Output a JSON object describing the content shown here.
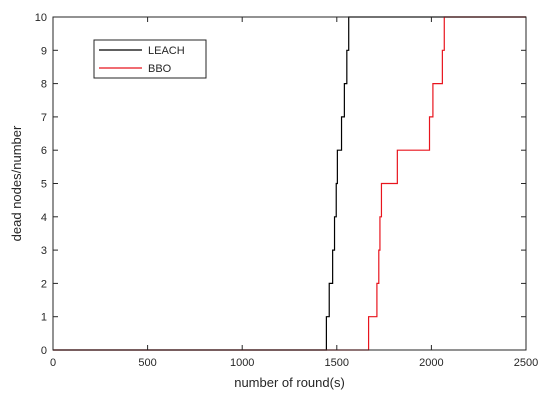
{
  "chart_data": {
    "type": "line",
    "title": "",
    "xlabel": "number of round(s)",
    "ylabel": "dead nodes/number",
    "xlim": [
      0,
      2500
    ],
    "ylim": [
      0,
      10
    ],
    "x_ticks": [
      0,
      500,
      1000,
      1500,
      2000,
      2500
    ],
    "y_ticks": [
      0,
      1,
      2,
      3,
      4,
      5,
      6,
      7,
      8,
      9,
      10
    ],
    "grid": false,
    "legend_position": "top-left",
    "step": true,
    "series": [
      {
        "name": "LEACH",
        "color": "#000000",
        "points": [
          [
            0,
            0
          ],
          [
            1445,
            0
          ],
          [
            1445,
            1
          ],
          [
            1460,
            1
          ],
          [
            1460,
            2
          ],
          [
            1478,
            2
          ],
          [
            1478,
            3
          ],
          [
            1488,
            3
          ],
          [
            1488,
            4
          ],
          [
            1497,
            4
          ],
          [
            1497,
            5
          ],
          [
            1503,
            5
          ],
          [
            1503,
            6
          ],
          [
            1525,
            6
          ],
          [
            1525,
            7
          ],
          [
            1540,
            7
          ],
          [
            1540,
            8
          ],
          [
            1553,
            8
          ],
          [
            1553,
            9
          ],
          [
            1563,
            9
          ],
          [
            1563,
            10
          ],
          [
            2500,
            10
          ]
        ]
      },
      {
        "name": "BBO",
        "color": "#e8141d",
        "points": [
          [
            0,
            0
          ],
          [
            1668,
            0
          ],
          [
            1668,
            1
          ],
          [
            1712,
            1
          ],
          [
            1712,
            2
          ],
          [
            1722,
            2
          ],
          [
            1722,
            3
          ],
          [
            1728,
            3
          ],
          [
            1728,
            4
          ],
          [
            1736,
            4
          ],
          [
            1736,
            5
          ],
          [
            1820,
            5
          ],
          [
            1820,
            6
          ],
          [
            1990,
            6
          ],
          [
            1990,
            7
          ],
          [
            2008,
            7
          ],
          [
            2008,
            8
          ],
          [
            2058,
            8
          ],
          [
            2058,
            9
          ],
          [
            2068,
            9
          ],
          [
            2068,
            10
          ],
          [
            2500,
            10
          ]
        ]
      }
    ]
  }
}
